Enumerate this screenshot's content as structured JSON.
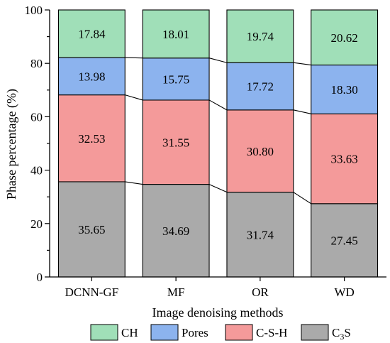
{
  "chart_data": {
    "type": "bar",
    "stacked": true,
    "categories": [
      "DCNN-GF",
      "MF",
      "OR",
      "WD"
    ],
    "series": [
      {
        "name": "C3S",
        "display_main": "C",
        "display_sub": "3",
        "display_tail": "S",
        "color": "#aaaaaa",
        "values": [
          35.65,
          34.69,
          31.74,
          27.45
        ]
      },
      {
        "name": "C-S-H",
        "color": "#f49a9a",
        "values": [
          32.53,
          31.55,
          30.8,
          33.63
        ]
      },
      {
        "name": "Pores",
        "color": "#8cb3ee",
        "values": [
          13.98,
          15.75,
          17.72,
          18.3
        ]
      },
      {
        "name": "CH",
        "color": "#a0dfb8",
        "values": [
          17.84,
          18.01,
          19.74,
          20.62
        ]
      }
    ],
    "value_labels": [
      [
        "35.65",
        "34.69",
        "31.74",
        "27.45"
      ],
      [
        "32.53",
        "31.55",
        "30.80",
        "33.63"
      ],
      [
        "13.98",
        "15.75",
        "17.72",
        "18.30"
      ],
      [
        "17.84",
        "18.01",
        "19.74",
        "20.62"
      ]
    ],
    "yticks": [
      "0",
      "20",
      "40",
      "60",
      "80",
      "100"
    ],
    "ylim": [
      0,
      100
    ],
    "xlabel": "Image denoising methods",
    "ylabel": "Phase percentage (%)",
    "legend_order": [
      3,
      2,
      1,
      0
    ],
    "legend_position": "bottom",
    "connector_lines": true
  }
}
